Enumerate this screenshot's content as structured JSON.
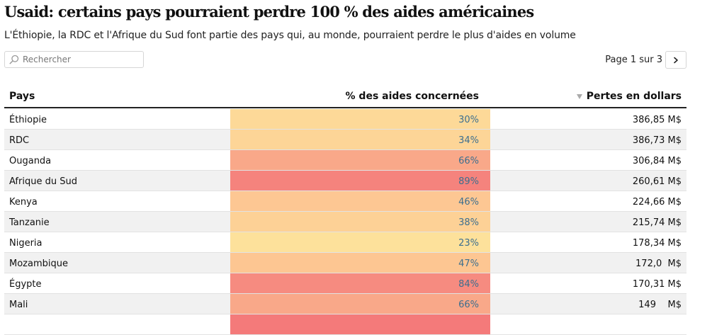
{
  "title": "Usaid: certains pays pourraient perdre 100 % des aides américaines",
  "subtitle": "L'Éthiopie, la RDC et l'Afrique du Sud font partie des pays qui, au monde, pourraient perdre le plus d'aides en volume",
  "search": {
    "placeholder": "Rechercher",
    "value": "",
    "icon": "search-icon"
  },
  "pagination": {
    "label": "Page 1 sur 3",
    "next_icon": "chevron-right-icon"
  },
  "table": {
    "columns": {
      "country": "Pays",
      "percent": "% des aides concernées",
      "losses": "Pertes en dollars",
      "sort_icon": "sort-desc-icon"
    },
    "colors": {
      "low": "#fde49c",
      "mid": "#fdc993",
      "high": "#f47a7a",
      "pct_text": "#3c6f8f",
      "alt_row": "#f1f1f1"
    },
    "rows": [
      {
        "country": "Éthiopie",
        "percent_label": "30%",
        "percent": 30,
        "losses": "386,85 M$"
      },
      {
        "country": "RDC",
        "percent_label": "34%",
        "percent": 34,
        "losses": "386,73 M$"
      },
      {
        "country": "Ouganda",
        "percent_label": "66%",
        "percent": 66,
        "losses": "306,84 M$"
      },
      {
        "country": "Afrique du Sud",
        "percent_label": "89%",
        "percent": 89,
        "losses": "260,61 M$"
      },
      {
        "country": "Kenya",
        "percent_label": "46%",
        "percent": 46,
        "losses": "224,66 M$"
      },
      {
        "country": "Tanzanie",
        "percent_label": "38%",
        "percent": 38,
        "losses": "215,74 M$"
      },
      {
        "country": "Nigeria",
        "percent_label": "23%",
        "percent": 23,
        "losses": "178,34 M$"
      },
      {
        "country": "Mozambique",
        "percent_label": "47%",
        "percent": 47,
        "losses": "172,0  M$"
      },
      {
        "country": "Égypte",
        "percent_label": "84%",
        "percent": 84,
        "losses": "170,31 M$"
      },
      {
        "country": "Mali",
        "percent_label": "66%",
        "percent": 66,
        "losses": "149    M$"
      },
      {
        "country": "",
        "percent_label": "",
        "percent": 95,
        "losses": ""
      }
    ]
  }
}
